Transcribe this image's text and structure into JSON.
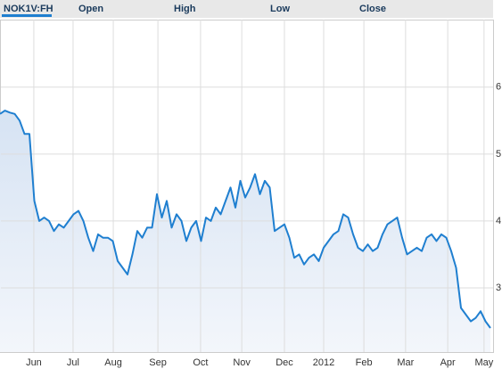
{
  "header": {
    "symbol": "NOK1V:FH",
    "fields": [
      "Open",
      "High",
      "Low",
      "Close"
    ]
  },
  "chart_data": {
    "type": "line",
    "xlim": [
      0,
      100
    ],
    "ylim": [
      2.04,
      7.01
    ],
    "xticks": [
      {
        "value": 6.9,
        "label": "Jun"
      },
      {
        "value": 14.9,
        "label": "Jul"
      },
      {
        "value": 23.1,
        "label": "Aug"
      },
      {
        "value": 32.2,
        "label": "Sep"
      },
      {
        "value": 40.9,
        "label": "Oct"
      },
      {
        "value": 49.3,
        "label": "Nov"
      },
      {
        "value": 58,
        "label": "Dec"
      },
      {
        "value": 66,
        "label": "2012"
      },
      {
        "value": 74.2,
        "label": "Feb"
      },
      {
        "value": 82.7,
        "label": "Mar"
      },
      {
        "value": 91.3,
        "label": "Apr"
      },
      {
        "value": 98.7,
        "label": "May"
      }
    ],
    "yticks": [
      3,
      4,
      5,
      6
    ],
    "grid": true,
    "color": "#1f7fd0",
    "values": [
      5.6,
      5.65,
      5.62,
      5.6,
      5.5,
      5.3,
      5.3,
      4.3,
      4.0,
      4.05,
      4.0,
      3.85,
      3.95,
      3.9,
      4.0,
      4.1,
      4.15,
      4.0,
      3.75,
      3.55,
      3.8,
      3.75,
      3.75,
      3.7,
      3.4,
      3.3,
      3.2,
      3.5,
      3.85,
      3.75,
      3.9,
      3.9,
      4.4,
      4.05,
      4.3,
      3.9,
      4.1,
      4.0,
      3.7,
      3.9,
      4.0,
      3.7,
      4.05,
      4.0,
      4.2,
      4.1,
      4.3,
      4.5,
      4.2,
      4.6,
      4.35,
      4.5,
      4.7,
      4.4,
      4.6,
      4.5,
      3.85,
      3.9,
      3.95,
      3.75,
      3.45,
      3.5,
      3.35,
      3.45,
      3.5,
      3.4,
      3.6,
      3.7,
      3.8,
      3.85,
      4.1,
      4.05,
      3.8,
      3.6,
      3.55,
      3.65,
      3.55,
      3.6,
      3.8,
      3.95,
      4.0,
      4.05,
      3.75,
      3.5,
      3.55,
      3.6,
      3.55,
      3.75,
      3.8,
      3.7,
      3.8,
      3.75,
      3.55,
      3.3,
      2.7,
      2.6,
      2.5,
      2.55,
      2.65,
      2.5,
      2.4
    ]
  }
}
